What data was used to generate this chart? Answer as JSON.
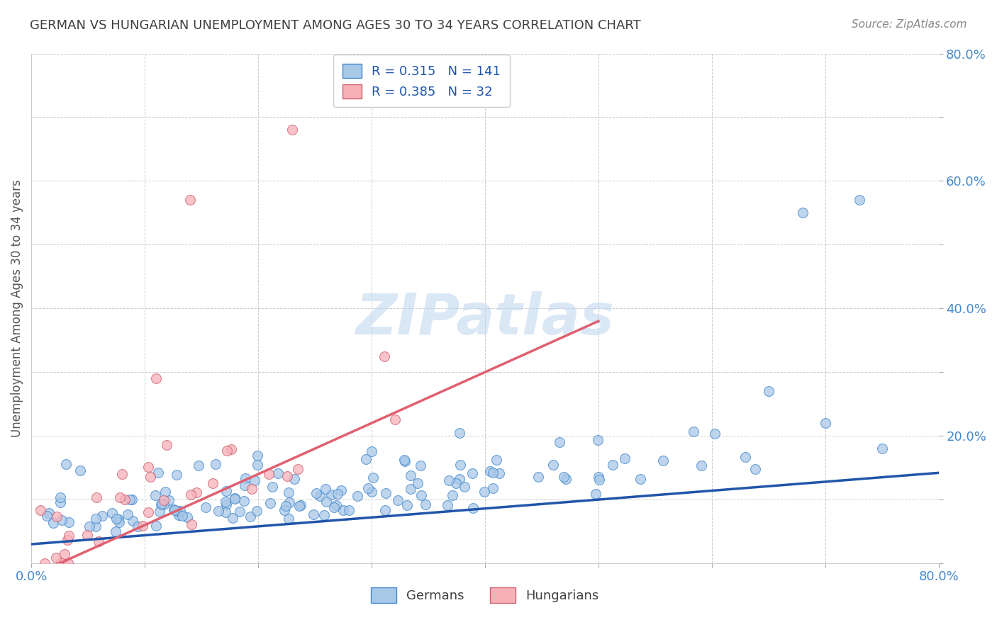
{
  "title": "GERMAN VS HUNGARIAN UNEMPLOYMENT AMONG AGES 30 TO 34 YEARS CORRELATION CHART",
  "source": "Source: ZipAtlas.com",
  "ylabel": "Unemployment Among Ages 30 to 34 years",
  "xlim": [
    0.0,
    0.8
  ],
  "ylim": [
    0.0,
    0.8
  ],
  "german_color": "#a8c8e8",
  "german_edge_color": "#4488cc",
  "hungarian_color": "#f8b0b8",
  "hungarian_edge_color": "#cc6070",
  "german_line_color": "#2255aa",
  "hungarian_line_color": "#e06070",
  "R_german": 0.315,
  "N_german": 141,
  "R_hungarian": 0.385,
  "N_hungarian": 32,
  "watermark_text": "ZIPatlas",
  "legend_label_german": "Germans",
  "legend_label_hungarian": "Hungarians",
  "background_color": "#ffffff",
  "grid_color": "#cccccc",
  "title_color": "#404040",
  "axis_label_color": "#555555",
  "tick_label_color": "#4488cc",
  "source_color": "#888888",
  "seed": 42
}
